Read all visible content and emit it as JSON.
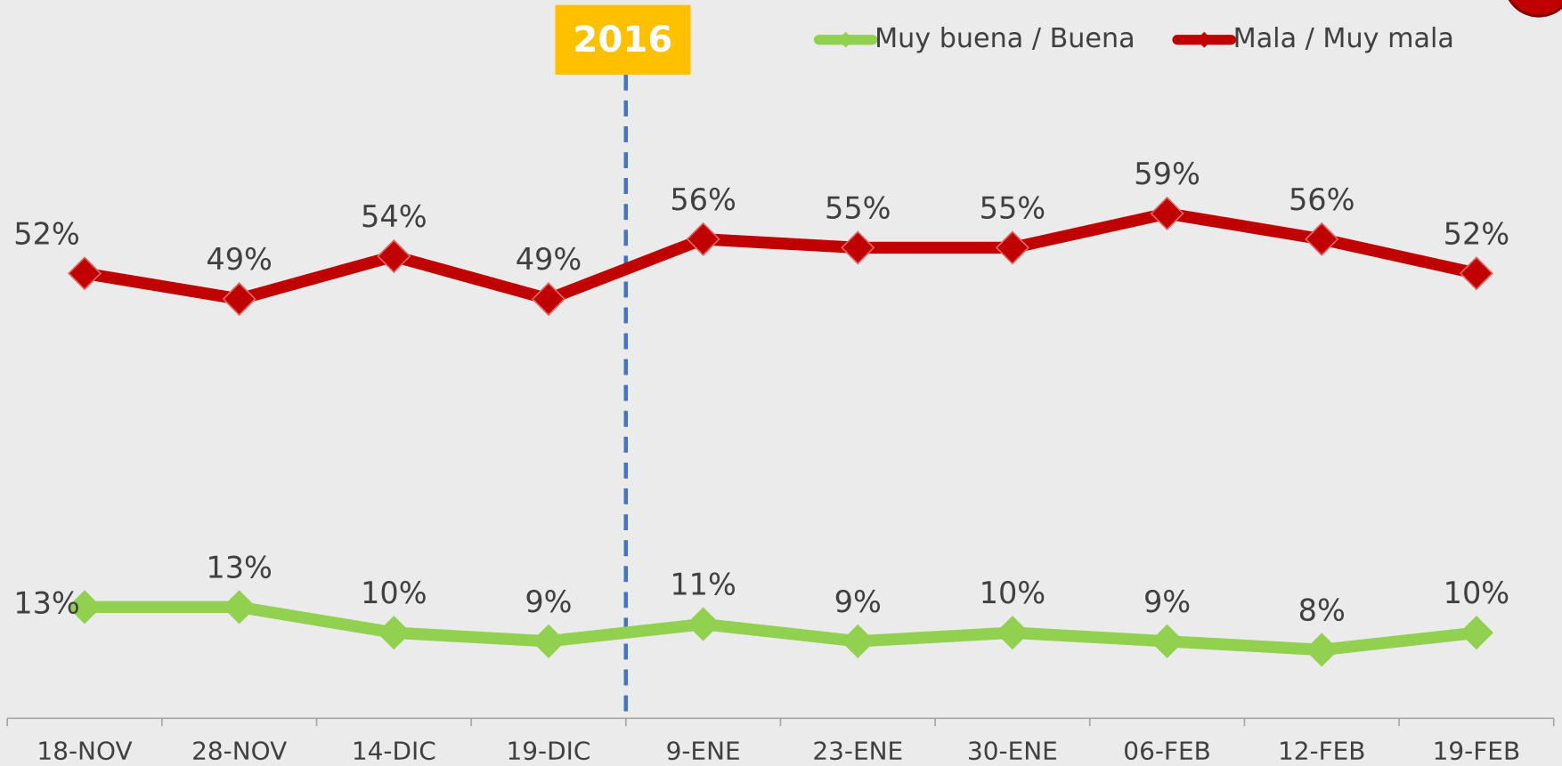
{
  "chart_data": {
    "type": "line",
    "annotation": "2016",
    "categories": [
      "18-NOV",
      "28-NOV",
      "14-DIC",
      "19-DIC",
      "9-ENE",
      "23-ENE",
      "30-ENE",
      "06-FEB",
      "12-FEB",
      "19-FEB"
    ],
    "series": [
      {
        "name": "Muy buena / Buena",
        "color": "#92d050",
        "values": [
          13,
          13,
          10,
          9,
          11,
          9,
          10,
          9,
          8,
          10
        ],
        "value_labels": [
          "13%",
          "13%",
          "10%",
          "9%",
          "11%",
          "9%",
          "10%",
          "9%",
          "8%",
          "10%"
        ]
      },
      {
        "name": "Mala / Muy mala",
        "color": "#c00000",
        "values": [
          52,
          49,
          54,
          49,
          56,
          55,
          55,
          59,
          56,
          52
        ],
        "value_labels": [
          "52%",
          "49%",
          "54%",
          "49%",
          "56%",
          "55%",
          "55%",
          "59%",
          "56%",
          "52%"
        ]
      }
    ],
    "legend": "top-right",
    "grid": false
  }
}
